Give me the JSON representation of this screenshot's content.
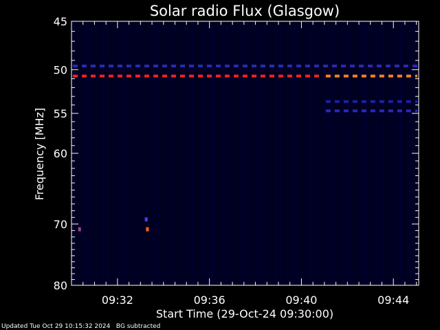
{
  "chart_data": {
    "type": "heatmap",
    "title": "Solar radio Flux (Glasgow)",
    "xlabel": "Start Time (29-Oct-24 09:30:00)",
    "ylabel": "Frequency [MHz]",
    "x_ticks": [
      "09:32",
      "09:36",
      "09:40",
      "09:44"
    ],
    "x_tick_minutes": [
      2,
      6,
      10,
      14
    ],
    "xlim_minutes": [
      0,
      15.1
    ],
    "y_ticks": [
      45,
      50,
      55,
      60,
      70,
      80
    ],
    "ylim": [
      45,
      80
    ],
    "y_scale": "log",
    "background_color": "#000020",
    "features": [
      {
        "kind": "line",
        "freq": 50.7,
        "t_start": 0.0,
        "t_end": 11.0,
        "color": "#ff2020"
      },
      {
        "kind": "line",
        "freq": 50.7,
        "t_start": 11.0,
        "t_end": 15.1,
        "color": "#ff8020"
      },
      {
        "kind": "line",
        "freq": 49.6,
        "t_start": 0.0,
        "t_end": 15.1,
        "color": "#2a2ab0"
      },
      {
        "kind": "line",
        "freq": 53.6,
        "t_start": 11.0,
        "t_end": 15.1,
        "color": "#2020a0"
      },
      {
        "kind": "line",
        "freq": 54.7,
        "t_start": 11.0,
        "t_end": 15.1,
        "color": "#2828c0"
      },
      {
        "kind": "spot",
        "freq": 70.8,
        "t": 3.3,
        "color": "#ff6020"
      },
      {
        "kind": "spot",
        "freq": 70.8,
        "t": 0.35,
        "color": "#a040a0"
      },
      {
        "kind": "spot",
        "freq": 69.3,
        "t": 3.25,
        "color": "#4040ff"
      }
    ]
  },
  "footer": {
    "updated": "Updated Tue Oct 29 10:15:32 2024",
    "note": "BG subtracted"
  }
}
